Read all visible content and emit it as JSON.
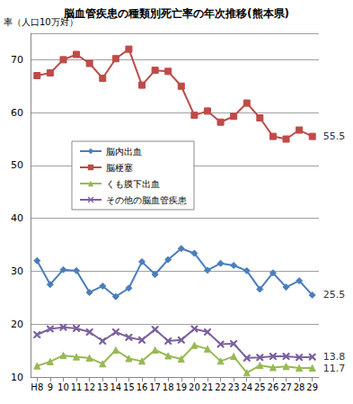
{
  "chart_data": {
    "type": "line",
    "title": "脳血管疾患の種類別死亡率の年次推移(熊本県)",
    "y_label": "率（人口10万対）",
    "categories": [
      "H8",
      "9",
      "10",
      "11",
      "12",
      "13",
      "14",
      "15",
      "16",
      "17",
      "18",
      "19",
      "20",
      "21",
      "22",
      "23",
      "24",
      "25",
      "26",
      "27",
      "28",
      "29"
    ],
    "series": [
      {
        "name": "脳内出血",
        "color": "#4a7ebb",
        "marker": "diamond",
        "values": [
          32.0,
          27.5,
          30.3,
          30.1,
          26.0,
          27.2,
          25.2,
          26.8,
          31.8,
          29.4,
          32.2,
          34.3,
          33.4,
          30.2,
          31.5,
          31.1,
          30.1,
          26.6,
          29.7,
          27.0,
          28.2,
          25.5
        ],
        "value_labels": [
          null,
          null,
          null,
          null,
          null,
          null,
          null,
          null,
          null,
          null,
          null,
          null,
          null,
          null,
          null,
          null,
          null,
          null,
          null,
          null,
          null,
          "25.5"
        ]
      },
      {
        "name": "脳梗塞",
        "color": "#be4b48",
        "marker": "square",
        "values": [
          67.0,
          67.5,
          70.0,
          71.0,
          69.3,
          66.5,
          70.2,
          72.0,
          65.2,
          68.0,
          67.8,
          65.0,
          59.5,
          60.3,
          58.2,
          59.3,
          61.8,
          59.0,
          55.5,
          55.0,
          56.7,
          55.5
        ],
        "value_labels": [
          null,
          null,
          null,
          null,
          null,
          null,
          null,
          null,
          null,
          null,
          null,
          null,
          null,
          null,
          null,
          null,
          null,
          null,
          null,
          null,
          null,
          "55.5"
        ]
      },
      {
        "name": "くも膜下出血",
        "color": "#98b954",
        "marker": "triangle",
        "values": [
          12.1,
          12.9,
          14.1,
          13.8,
          13.6,
          12.5,
          15.1,
          13.5,
          13.0,
          15.1,
          14.0,
          13.4,
          16.0,
          15.3,
          13.0,
          13.9,
          10.8,
          12.2,
          11.8,
          12.0,
          11.7,
          11.7
        ],
        "value_labels": [
          null,
          null,
          null,
          null,
          null,
          null,
          null,
          null,
          null,
          null,
          null,
          null,
          null,
          null,
          null,
          null,
          null,
          null,
          null,
          null,
          null,
          "11.7"
        ]
      },
      {
        "name": "その他の脳血管疾患",
        "color": "#7d60a0",
        "marker": "x",
        "values": [
          18.0,
          19.1,
          19.4,
          19.2,
          18.5,
          16.8,
          18.5,
          17.5,
          17.0,
          19.0,
          16.8,
          17.0,
          19.1,
          18.5,
          16.2,
          16.3,
          13.6,
          13.7,
          13.9,
          13.9,
          13.7,
          13.8
        ],
        "value_labels": [
          null,
          null,
          null,
          null,
          null,
          null,
          null,
          null,
          null,
          null,
          null,
          null,
          null,
          null,
          null,
          null,
          null,
          null,
          null,
          null,
          null,
          "13.8"
        ]
      }
    ],
    "ylim": [
      10,
      75
    ],
    "yticks": [
      10,
      20,
      30,
      40,
      50,
      60,
      70
    ],
    "grid": true,
    "legend": "upper left"
  }
}
